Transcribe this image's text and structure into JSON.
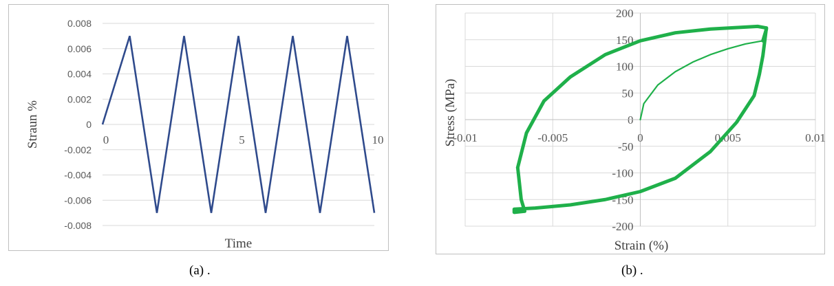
{
  "chart_data": [
    {
      "type": "line",
      "xlabel": "Time",
      "ylabel": "Straun    %",
      "xlim": [
        0,
        10
      ],
      "ylim": [
        -0.008,
        0.008
      ],
      "x_ticks": [
        "0",
        "5",
        "10"
      ],
      "y_ticks": [
        "0.008",
        "0.006",
        "0.004",
        "0.002",
        "0",
        "-0.002",
        "-0.004",
        "-0.006",
        "-0.008"
      ],
      "grid": true,
      "color": "#2f4a8c",
      "series": [
        {
          "x": [
            0,
            1,
            2,
            3,
            4,
            5,
            6,
            7,
            8,
            9,
            10
          ],
          "y": [
            0,
            0.007,
            -0.007,
            0.007,
            -0.007,
            0.007,
            -0.007,
            0.007,
            -0.007,
            0.007,
            -0.007
          ]
        }
      ]
    },
    {
      "type": "line",
      "xlabel": "Strain   (%)",
      "ylabel": "Stress  (MPa)",
      "xlim": [
        -0.01,
        0.01
      ],
      "ylim": [
        -200,
        200
      ],
      "x_ticks": [
        "-0.01",
        "-0.005",
        "0",
        "0.005",
        "0.01"
      ],
      "y_ticks": [
        "200",
        "150",
        "100",
        "50",
        "0",
        "-50",
        "-100",
        "-150",
        "-200"
      ],
      "grid": true,
      "color": "#1fb04a",
      "series": [
        {
          "x": [
            0,
            0.0002,
            0.001,
            0.002,
            0.003,
            0.004,
            0.005,
            0.006,
            0.007
          ],
          "y": [
            0,
            30,
            65,
            90,
            108,
            122,
            133,
            142,
            148
          ]
        },
        {
          "x": [
            0.007,
            0.0072,
            0.0072,
            0.0067,
            0.004,
            0.002,
            0.0,
            -0.002,
            -0.004,
            -0.0055,
            -0.0065,
            -0.007
          ],
          "y": [
            148,
            170,
            172,
            175,
            170,
            163,
            148,
            122,
            80,
            35,
            -25,
            -90
          ]
        },
        {
          "x": [
            -0.007,
            -0.0068,
            -0.0066,
            -0.0072,
            -0.0072,
            -0.006,
            -0.004,
            -0.002,
            0.0,
            0.002,
            0.004,
            0.0055,
            0.0065,
            0.0068,
            0.007,
            0.0072
          ],
          "y": [
            -90,
            -150,
            -172,
            -174,
            -168,
            -166,
            -160,
            -150,
            -135,
            -110,
            -60,
            -5,
            45,
            85,
            120,
            172
          ]
        }
      ]
    }
  ],
  "captions": [
    "(a)  .",
    "(b)  ."
  ]
}
